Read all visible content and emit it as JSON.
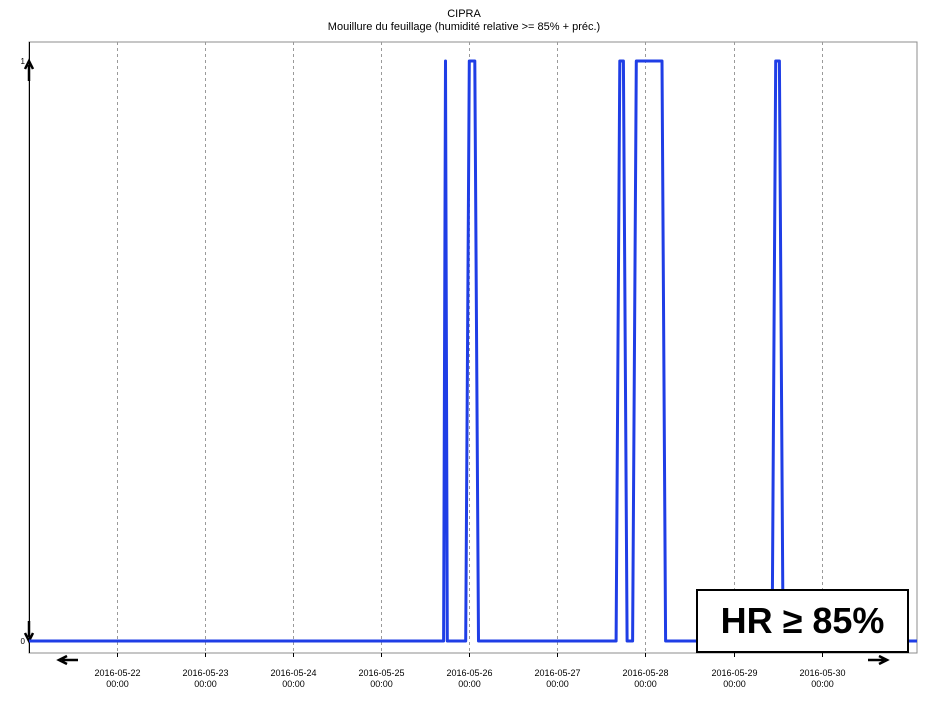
{
  "chart_data": {
    "type": "line",
    "title": "CIPRA",
    "subtitle": "Mouillure du feuillage (humidité relative >= 85% + préc.)",
    "xlabel": "",
    "ylabel": "",
    "x_tick_labels": [
      {
        "date": "2016-05-22",
        "time": "00:00"
      },
      {
        "date": "2016-05-23",
        "time": "00:00"
      },
      {
        "date": "2016-05-24",
        "time": "00:00"
      },
      {
        "date": "2016-05-25",
        "time": "00:00"
      },
      {
        "date": "2016-05-26",
        "time": "00:00"
      },
      {
        "date": "2016-05-27",
        "time": "00:00"
      },
      {
        "date": "2016-05-28",
        "time": "00:00"
      },
      {
        "date": "2016-05-29",
        "time": "00:00"
      },
      {
        "date": "2016-05-30",
        "time": "00:00"
      }
    ],
    "xlim": [
      "2016-05-21 00:00",
      "2016-05-31 02:00"
    ],
    "y_tick_labels": [
      "0",
      "1"
    ],
    "ylim": [
      0,
      1
    ],
    "grid": "vertical-dashed",
    "series": [
      {
        "color": "#1f3ee6",
        "points": [
          [
            "2016-05-21 00:00",
            0
          ],
          [
            "2016-05-25 17:00",
            0
          ],
          [
            "2016-05-25 17:30",
            1
          ],
          [
            "2016-05-25 18:00",
            0
          ],
          [
            "2016-05-25 23:00",
            0
          ],
          [
            "2016-05-26 00:00",
            1
          ],
          [
            "2016-05-26 01:30",
            1
          ],
          [
            "2016-05-26 02:30",
            0
          ],
          [
            "2016-05-27 16:00",
            0
          ],
          [
            "2016-05-27 17:00",
            1
          ],
          [
            "2016-05-27 18:00",
            1
          ],
          [
            "2016-05-27 19:00",
            0
          ],
          [
            "2016-05-27 20:30",
            0
          ],
          [
            "2016-05-27 21:30",
            1
          ],
          [
            "2016-05-28 04:30",
            1
          ],
          [
            "2016-05-28 05:30",
            0
          ],
          [
            "2016-05-29 10:30",
            0
          ],
          [
            "2016-05-29 11:30",
            1
          ],
          [
            "2016-05-29 12:30",
            1
          ],
          [
            "2016-05-29 13:30",
            0
          ],
          [
            "2016-05-31 02:00",
            0
          ]
        ]
      }
    ]
  },
  "annotation": {
    "text": "HR ≥ 85%"
  },
  "colors": {
    "series": "#1f3ee6",
    "grid": "#9a9a9a",
    "axis": "#000000"
  }
}
